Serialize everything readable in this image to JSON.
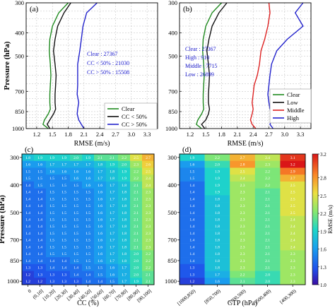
{
  "chart_data": [
    {
      "panel": "(a)",
      "type": "line",
      "xlabel": "RMSE (m/s)",
      "ylabel": "Pressure (hPa)",
      "xlim": [
        1.0,
        3.5
      ],
      "ylim": [
        1000,
        300
      ],
      "y_scale": "log",
      "xticks": [
        "1.2",
        "1.5",
        "1.8",
        "2.1",
        "2.4",
        "2.7",
        "3.0",
        "3.3"
      ],
      "yticks": [
        "300",
        "400",
        "500",
        "700",
        "850",
        "1000"
      ],
      "grid": true,
      "legend_position": "bottom-right",
      "annotations": [
        {
          "text": "Clear : 27367",
          "color": "#1a1acc"
        },
        {
          "text": "CC < 50% : 21030",
          "color": "#1a1acc"
        },
        {
          "text": "CC > 50% : 15508",
          "color": "#1a1acc"
        }
      ],
      "series": [
        {
          "name": "Clear",
          "color": "#1f8a1f",
          "points": [
            [
              1.8,
              300
            ],
            [
              1.62,
              330
            ],
            [
              1.5,
              375
            ],
            [
              1.45,
              425
            ],
            [
              1.44,
              475
            ],
            [
              1.46,
              540
            ],
            [
              1.47,
              600
            ],
            [
              1.46,
              660
            ],
            [
              1.45,
              720
            ],
            [
              1.45,
              780
            ],
            [
              1.46,
              830
            ],
            [
              1.42,
              870
            ],
            [
              1.35,
              920
            ],
            [
              1.32,
              960
            ],
            [
              1.42,
              1000
            ]
          ]
        },
        {
          "name": "CC < 50%",
          "color": "#111111",
          "points": [
            [
              1.85,
              300
            ],
            [
              1.72,
              330
            ],
            [
              1.6,
              375
            ],
            [
              1.55,
              425
            ],
            [
              1.52,
              475
            ],
            [
              1.55,
              540
            ],
            [
              1.57,
              600
            ],
            [
              1.56,
              660
            ],
            [
              1.55,
              720
            ],
            [
              1.55,
              780
            ],
            [
              1.56,
              830
            ],
            [
              1.52,
              870
            ],
            [
              1.45,
              920
            ],
            [
              1.4,
              960
            ],
            [
              1.45,
              1000
            ]
          ]
        },
        {
          "name": "CC > 50%",
          "color": "#2222cc",
          "points": [
            [
              2.35,
              300
            ],
            [
              2.15,
              330
            ],
            [
              2.08,
              375
            ],
            [
              2.05,
              425
            ],
            [
              2.02,
              475
            ],
            [
              1.98,
              540
            ],
            [
              1.98,
              600
            ],
            [
              1.98,
              660
            ],
            [
              1.97,
              720
            ],
            [
              2.0,
              780
            ],
            [
              1.98,
              830
            ],
            [
              1.97,
              870
            ],
            [
              2.0,
              920
            ],
            [
              2.05,
              960
            ],
            [
              2.1,
              1000
            ]
          ]
        }
      ]
    },
    {
      "panel": "(b)",
      "type": "line",
      "xlabel": "RMSE (m/s)",
      "ylabel": "",
      "xlim": [
        1.0,
        3.5
      ],
      "ylim": [
        1000,
        300
      ],
      "y_scale": "log",
      "xticks": [
        "1.2",
        "1.5",
        "1.8",
        "2.1",
        "2.4",
        "2.7",
        "3.0",
        "3.3"
      ],
      "yticks": [
        "300",
        "400",
        "500",
        "700",
        "850",
        "1000"
      ],
      "grid": true,
      "legend_position": "bottom-right",
      "annotations": [
        {
          "text": "Clear : 27367",
          "color": "#1a1acc"
        },
        {
          "text": "High : 910",
          "color": "#1a1acc"
        },
        {
          "text": "Middle : 7715",
          "color": "#1a1acc"
        },
        {
          "text": "Low : 26899",
          "color": "#1a1acc"
        }
      ],
      "series": [
        {
          "name": "Clear",
          "color": "#1f8a1f",
          "points": [
            [
              1.8,
              300
            ],
            [
              1.62,
              330
            ],
            [
              1.5,
              375
            ],
            [
              1.45,
              425
            ],
            [
              1.44,
              475
            ],
            [
              1.46,
              540
            ],
            [
              1.47,
              600
            ],
            [
              1.46,
              660
            ],
            [
              1.45,
              720
            ],
            [
              1.45,
              780
            ],
            [
              1.46,
              830
            ],
            [
              1.42,
              870
            ],
            [
              1.35,
              920
            ],
            [
              1.32,
              960
            ],
            [
              1.42,
              1000
            ]
          ]
        },
        {
          "name": "Low",
          "color": "#111111",
          "points": [
            [
              1.9,
              300
            ],
            [
              1.75,
              330
            ],
            [
              1.62,
              375
            ],
            [
              1.56,
              425
            ],
            [
              1.52,
              475
            ],
            [
              1.55,
              540
            ],
            [
              1.57,
              600
            ],
            [
              1.56,
              660
            ],
            [
              1.55,
              720
            ],
            [
              1.55,
              780
            ],
            [
              1.57,
              830
            ],
            [
              1.55,
              870
            ],
            [
              1.5,
              920
            ],
            [
              1.42,
              960
            ],
            [
              1.48,
              1000
            ]
          ]
        },
        {
          "name": "Middle",
          "color": "#dd2222",
          "points": [
            [
              2.7,
              300
            ],
            [
              2.72,
              330
            ],
            [
              2.68,
              375
            ],
            [
              2.62,
              425
            ],
            [
              2.55,
              475
            ],
            [
              2.52,
              540
            ],
            [
              2.48,
              600
            ],
            [
              2.42,
              660
            ],
            [
              2.4,
              720
            ],
            [
              2.38,
              780
            ],
            [
              2.4,
              830
            ],
            [
              2.38,
              870
            ],
            [
              2.35,
              920
            ],
            [
              2.38,
              960
            ],
            [
              2.45,
              1000
            ]
          ]
        },
        {
          "name": "High",
          "color": "#2222cc",
          "points": [
            [
              3.35,
              300
            ],
            [
              3.2,
              330
            ],
            [
              3.35,
              375
            ],
            [
              3.05,
              425
            ],
            [
              2.85,
              475
            ],
            [
              2.75,
              540
            ],
            [
              2.72,
              600
            ],
            [
              2.7,
              660
            ],
            [
              2.68,
              720
            ],
            [
              2.7,
              780
            ],
            [
              2.72,
              830
            ],
            [
              2.75,
              870
            ],
            [
              2.75,
              920
            ],
            [
              2.72,
              960
            ],
            [
              2.78,
              1000
            ]
          ]
        }
      ]
    },
    {
      "panel": "(c)",
      "type": "heatmap",
      "xlabel": "CC (%)",
      "ylabel": "Pressure (hPa)",
      "categories": [
        "0",
        "(0,10]",
        "[10,20]",
        "[20,30]",
        "[30,40]",
        "[40,50]",
        "[50,60]",
        "[60,70]",
        "[70,80]",
        "[80,90]",
        "[90,100]"
      ],
      "yticks": [
        "300",
        "400",
        "500",
        "700",
        "850",
        "1000"
      ],
      "levels": [
        300,
        325,
        350,
        375,
        400,
        425,
        450,
        475,
        500,
        550,
        600,
        650,
        700,
        750,
        800,
        850,
        900,
        950,
        1000
      ],
      "values": [
        [
          1.8,
          1.9,
          1.9,
          1.9,
          2.0,
          1.9,
          2.1,
          2.1,
          2.2,
          2.5,
          2.7
        ],
        [
          1.6,
          1.6,
          1.7,
          1.7,
          1.7,
          1.7,
          1.8,
          1.9,
          2.0,
          2.3,
          2.6
        ],
        [
          1.5,
          1.5,
          1.6,
          1.6,
          1.6,
          1.6,
          1.7,
          1.8,
          1.9,
          2.2,
          2.5
        ],
        [
          1.5,
          1.5,
          1.5,
          1.5,
          1.6,
          1.6,
          1.7,
          1.8,
          1.9,
          2.2,
          2.4
        ],
        [
          1.4,
          1.5,
          1.5,
          1.5,
          1.5,
          1.6,
          1.6,
          1.7,
          1.8,
          2.1,
          2.4
        ],
        [
          1.4,
          1.4,
          1.5,
          1.5,
          1.5,
          1.5,
          1.6,
          1.7,
          1.8,
          2.1,
          2.3
        ],
        [
          1.4,
          1.4,
          1.5,
          1.5,
          1.5,
          1.5,
          1.6,
          1.7,
          1.8,
          2.1,
          2.3
        ],
        [
          1.4,
          1.4,
          1.5,
          1.5,
          1.5,
          1.5,
          1.6,
          1.7,
          1.8,
          2.1,
          2.3
        ],
        [
          1.4,
          1.4,
          1.5,
          1.5,
          1.5,
          1.5,
          1.6,
          1.7,
          1.8,
          2.1,
          2.3
        ],
        [
          1.4,
          1.4,
          1.5,
          1.5,
          1.5,
          1.5,
          1.6,
          1.7,
          1.8,
          2.1,
          2.3
        ],
        [
          1.4,
          1.4,
          1.5,
          1.5,
          1.5,
          1.5,
          1.6,
          1.7,
          1.8,
          2.1,
          2.3
        ],
        [
          1.4,
          1.4,
          1.5,
          1.5,
          1.5,
          1.5,
          1.6,
          1.7,
          1.8,
          2.1,
          2.3
        ],
        [
          1.4,
          1.4,
          1.5,
          1.5,
          1.5,
          1.5,
          1.6,
          1.7,
          1.8,
          2.1,
          2.3
        ],
        [
          1.4,
          1.4,
          1.5,
          1.5,
          1.5,
          1.5,
          1.6,
          1.7,
          1.8,
          2.1,
          2.3
        ],
        [
          1.4,
          1.4,
          1.5,
          1.5,
          1.5,
          1.5,
          1.6,
          1.7,
          1.8,
          2.0,
          2.2
        ],
        [
          1.4,
          1.4,
          1.4,
          1.4,
          1.5,
          1.5,
          1.6,
          1.7,
          1.8,
          2.0,
          2.2
        ],
        [
          1.3,
          1.3,
          1.4,
          1.4,
          1.4,
          1.5,
          1.5,
          1.6,
          1.7,
          2.0,
          2.2
        ],
        [
          1.2,
          1.3,
          1.3,
          1.3,
          1.4,
          1.4,
          1.5,
          1.6,
          1.7,
          2.0,
          2.1
        ],
        [
          1.2,
          1.2,
          1.3,
          1.3,
          1.3,
          1.4,
          1.4,
          1.5,
          1.7,
          1.9,
          2.1
        ]
      ]
    },
    {
      "panel": "(d)",
      "type": "heatmap",
      "xlabel": "CTP (hPa)",
      "ylabel": "",
      "categories": [
        "[1000,850)",
        "[850,700)",
        "[700,500)",
        "[500,400)",
        "[400,300)"
      ],
      "yticks": [
        "300",
        "400",
        "500",
        "700",
        "850",
        "1000"
      ],
      "levels": [
        300,
        325,
        350,
        375,
        400,
        425,
        450,
        475,
        500,
        550,
        600,
        650,
        700,
        750,
        800,
        850,
        900,
        950,
        1000
      ],
      "values": [
        [
          1.9,
          2.2,
          2.7,
          2.4,
          3.1
        ],
        [
          1.6,
          2.0,
          2.8,
          2.3,
          3.2
        ],
        [
          1.5,
          1.9,
          2.5,
          2.2,
          2.9
        ],
        [
          1.5,
          1.9,
          2.4,
          2.2,
          2.7
        ],
        [
          1.4,
          1.9,
          2.3,
          2.2,
          2.5
        ],
        [
          1.4,
          1.9,
          2.3,
          2.1,
          2.5
        ],
        [
          1.4,
          1.8,
          2.3,
          2.1,
          2.5
        ],
        [
          1.4,
          1.8,
          2.3,
          2.1,
          2.5
        ],
        [
          1.4,
          1.8,
          2.3,
          2.1,
          2.5
        ],
        [
          1.4,
          1.8,
          2.3,
          2.1,
          2.4
        ],
        [
          1.4,
          1.8,
          2.3,
          2.1,
          2.4
        ],
        [
          1.4,
          1.8,
          2.3,
          2.1,
          2.4
        ],
        [
          1.4,
          1.8,
          2.3,
          2.1,
          2.4
        ],
        [
          1.4,
          1.8,
          2.3,
          2.1,
          2.4
        ],
        [
          1.4,
          1.8,
          2.3,
          2.1,
          2.3
        ],
        [
          1.4,
          1.8,
          2.3,
          2.1,
          2.3
        ],
        [
          1.3,
          1.8,
          2.3,
          2.1,
          2.3
        ],
        [
          1.3,
          1.7,
          2.2,
          2.0,
          2.3
        ],
        [
          1.2,
          1.6,
          2.1,
          2.0,
          2.3
        ]
      ],
      "colorbar": {
        "label": "RMSE (m/s)",
        "range": [
          1.0,
          3.2
        ],
        "ticks": [
          "1.0",
          "1.3",
          "1.6",
          "1.9",
          "2.2",
          "2.5",
          "2.8",
          "3.2"
        ]
      }
    }
  ]
}
